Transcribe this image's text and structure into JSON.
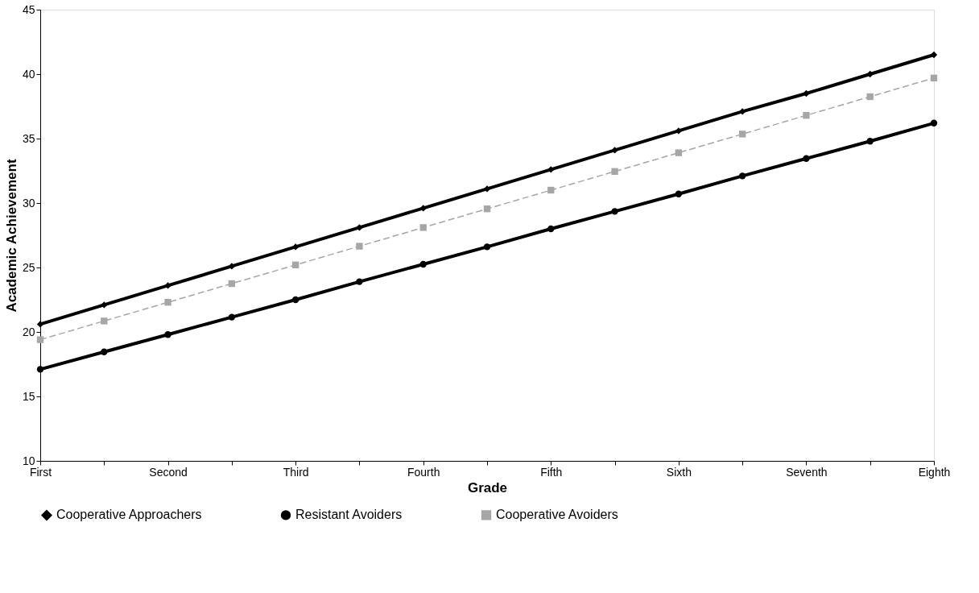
{
  "chart_data": {
    "type": "line",
    "xlabel": "Grade",
    "ylabel": "Academic Achievement",
    "categories": [
      "First",
      null,
      "Second",
      null,
      "Third",
      null,
      "Fourth",
      null,
      "Fifth",
      null,
      "Sixth",
      null,
      "Seventh",
      null,
      "Eighth"
    ],
    "series": [
      {
        "name": "Cooperative Approachers",
        "color": "#000000",
        "marker": "diamond",
        "line_style": "solid",
        "values": [
          20.6,
          22.1,
          23.6,
          25.1,
          26.6,
          28.1,
          29.6,
          31.1,
          32.6,
          34.1,
          35.6,
          37.1,
          38.5,
          40.0,
          41.5
        ]
      },
      {
        "name": "Resistant Avoiders",
        "color": "#000000",
        "marker": "circle",
        "line_style": "solid",
        "values": [
          17.1,
          18.45,
          19.8,
          21.15,
          22.5,
          23.9,
          25.25,
          26.6,
          28.0,
          29.35,
          30.7,
          32.1,
          33.45,
          34.8,
          36.2
        ]
      },
      {
        "name": "Cooperative Avoiders",
        "color": "#a6a6a6",
        "marker": "square",
        "line_style": "dashed",
        "values": [
          19.4,
          20.85,
          22.3,
          23.75,
          25.2,
          26.65,
          28.1,
          29.55,
          31.0,
          32.45,
          33.9,
          35.35,
          36.8,
          38.25,
          39.7
        ]
      }
    ],
    "ylim": [
      10,
      45
    ],
    "yticks": [
      10,
      15,
      20,
      25,
      30,
      35,
      40,
      45
    ],
    "grid": false,
    "legend": "bottom"
  }
}
